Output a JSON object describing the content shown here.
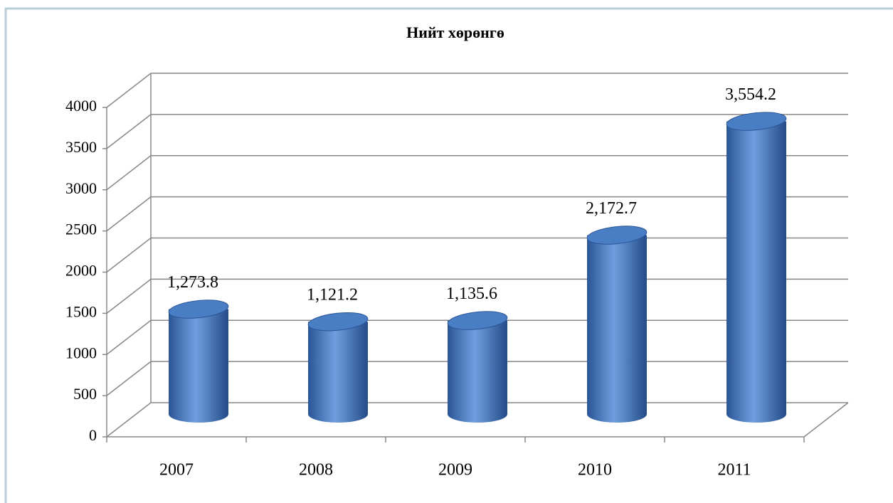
{
  "chart_data": {
    "type": "bar",
    "title": "Нийт хөрөнгө",
    "categories": [
      "2007",
      "2008",
      "2009",
      "2010",
      "2011"
    ],
    "values": [
      1273.8,
      1121.2,
      1135.6,
      2172.7,
      3554.2
    ],
    "value_labels": [
      "1,273.8",
      "1,121.2",
      "1,135.6",
      "2,172.7",
      "3,554.2"
    ],
    "color": "#4a7ec4",
    "ylim": [
      0,
      4000
    ],
    "yticks": [
      0,
      500,
      1000,
      1500,
      2000,
      2500,
      3000,
      3500,
      4000
    ],
    "grid": true
  }
}
